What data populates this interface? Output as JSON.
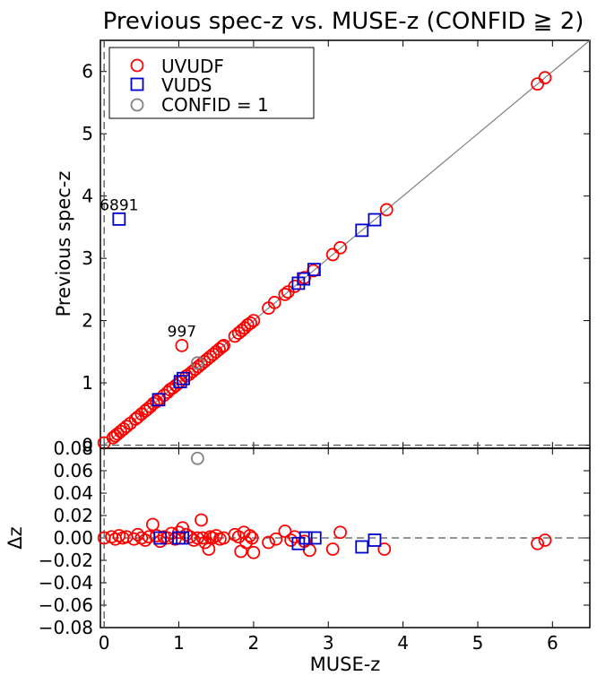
{
  "chart_data": [
    {
      "type": "scatter",
      "title": "Previous spec-z vs. MUSE-z (CONFID ≧ 2)",
      "xlabel": "",
      "ylabel": "Previous spec-z",
      "xlim": [
        -0.05,
        6.5
      ],
      "ylim": [
        -0.05,
        6.5
      ],
      "x_ticks": [
        0,
        1,
        2,
        3,
        4,
        5,
        6
      ],
      "y_ticks": [
        0,
        1,
        2,
        3,
        4,
        5,
        6
      ],
      "x_tick_labels": [],
      "y_tick_labels": [
        "0",
        "1",
        "2",
        "3",
        "4",
        "5",
        "6"
      ],
      "legend": {
        "position": "top-left",
        "entries": [
          "UVUDF",
          "VUDS",
          "CONFID = 1"
        ]
      },
      "colors": {
        "UVUDF": "#ff0000",
        "VUDS": "#0000cc",
        "CONFID = 1": "#808080",
        "one_to_one": "#808080"
      },
      "reference_lines": [
        "1:1 line",
        "x = 0 (dashed)",
        "y = 0 (dashed)"
      ],
      "annotations": [
        {
          "text": "6891",
          "x": 0.2,
          "y": 3.63
        },
        {
          "text": "997",
          "x": 1.04,
          "y": 1.6
        }
      ],
      "series": [
        {
          "name": "UVUDF",
          "marker": "circle",
          "points": [
            [
              0.0,
              0.0
            ],
            [
              0.12,
              0.12
            ],
            [
              0.15,
              0.15
            ],
            [
              0.18,
              0.18
            ],
            [
              0.22,
              0.22
            ],
            [
              0.26,
              0.26
            ],
            [
              0.3,
              0.3
            ],
            [
              0.35,
              0.35
            ],
            [
              0.42,
              0.42
            ],
            [
              0.45,
              0.45
            ],
            [
              0.5,
              0.5
            ],
            [
              0.55,
              0.55
            ],
            [
              0.58,
              0.58
            ],
            [
              0.62,
              0.62
            ],
            [
              0.66,
              0.67
            ],
            [
              0.7,
              0.7
            ],
            [
              0.74,
              0.74
            ],
            [
              0.8,
              0.8
            ],
            [
              0.85,
              0.85
            ],
            [
              0.88,
              0.89
            ],
            [
              0.92,
              0.92
            ],
            [
              0.96,
              0.96
            ],
            [
              1.0,
              1.0
            ],
            [
              1.04,
              1.6
            ],
            [
              1.1,
              1.11
            ],
            [
              1.14,
              1.14
            ],
            [
              1.18,
              1.18
            ],
            [
              1.22,
              1.22
            ],
            [
              1.26,
              1.26
            ],
            [
              1.3,
              1.3
            ],
            [
              1.34,
              1.34
            ],
            [
              1.38,
              1.38
            ],
            [
              1.42,
              1.42
            ],
            [
              1.46,
              1.46
            ],
            [
              1.5,
              1.5
            ],
            [
              1.54,
              1.54
            ],
            [
              1.58,
              1.58
            ],
            [
              1.6,
              1.6
            ],
            [
              1.75,
              1.75
            ],
            [
              1.8,
              1.8
            ],
            [
              1.84,
              1.84
            ],
            [
              1.88,
              1.88
            ],
            [
              1.92,
              1.93
            ],
            [
              1.96,
              1.96
            ],
            [
              2.0,
              2.0
            ],
            [
              2.2,
              2.2
            ],
            [
              2.28,
              2.29
            ],
            [
              2.42,
              2.42
            ],
            [
              2.46,
              2.46
            ],
            [
              2.55,
              2.55
            ],
            [
              2.68,
              2.69
            ],
            [
              2.8,
              2.8
            ],
            [
              3.06,
              3.06
            ],
            [
              3.16,
              3.17
            ],
            [
              3.78,
              3.78
            ],
            [
              5.8,
              5.8
            ],
            [
              5.9,
              5.9
            ]
          ]
        },
        {
          "name": "VUDS",
          "marker": "square",
          "points": [
            [
              0.2,
              3.63
            ],
            [
              0.73,
              0.73
            ],
            [
              1.02,
              1.02
            ],
            [
              1.06,
              1.07
            ],
            [
              2.6,
              2.6
            ],
            [
              2.67,
              2.67
            ],
            [
              2.81,
              2.82
            ],
            [
              3.45,
              3.45
            ],
            [
              3.62,
              3.62
            ]
          ]
        },
        {
          "name": "CONFID = 1",
          "marker": "circle",
          "points": [
            [
              1.25,
              1.32
            ]
          ]
        }
      ]
    },
    {
      "type": "scatter",
      "title": "",
      "xlabel": "MUSE-z",
      "ylabel": "Δz",
      "xlim": [
        -0.05,
        6.5
      ],
      "ylim": [
        -0.08,
        0.08
      ],
      "x_ticks": [
        0,
        1,
        2,
        3,
        4,
        5,
        6
      ],
      "y_ticks": [
        -0.08,
        -0.06,
        -0.04,
        -0.02,
        0.0,
        0.02,
        0.04,
        0.06,
        0.08
      ],
      "x_tick_labels": [
        "0",
        "1",
        "2",
        "3",
        "4",
        "5",
        "6"
      ],
      "y_tick_labels": [
        "−0.08",
        "−0.06",
        "−0.04",
        "−0.02",
        "0.00",
        "0.02",
        "0.04",
        "0.06",
        "0.08"
      ],
      "reference_lines": [
        "Δz = 0 (dashed)",
        "x = 0 (dashed)"
      ],
      "colors": {
        "UVUDF": "#ff0000",
        "VUDS": "#0000cc",
        "CONFID = 1": "#808080"
      },
      "series": [
        {
          "name": "UVUDF",
          "marker": "circle",
          "points": [
            [
              0.0,
              0.0
            ],
            [
              0.1,
              0.001
            ],
            [
              0.15,
              -0.001
            ],
            [
              0.2,
              0.002
            ],
            [
              0.25,
              0.0
            ],
            [
              0.3,
              0.001
            ],
            [
              0.4,
              -0.001
            ],
            [
              0.45,
              0.003
            ],
            [
              0.5,
              0.0
            ],
            [
              0.55,
              -0.002
            ],
            [
              0.6,
              0.001
            ],
            [
              0.65,
              0.012
            ],
            [
              0.7,
              0.002
            ],
            [
              0.75,
              -0.003
            ],
            [
              0.8,
              0.001
            ],
            [
              0.85,
              0.0
            ],
            [
              0.9,
              0.004
            ],
            [
              0.95,
              -0.001
            ],
            [
              1.0,
              0.005
            ],
            [
              1.05,
              0.009
            ],
            [
              1.1,
              0.003
            ],
            [
              1.15,
              0.001
            ],
            [
              1.2,
              -0.002
            ],
            [
              1.25,
              0.0
            ],
            [
              1.3,
              0.016
            ],
            [
              1.32,
              0.0
            ],
            [
              1.35,
              -0.004
            ],
            [
              1.4,
              -0.01
            ],
            [
              1.42,
              0.001
            ],
            [
              1.45,
              0.0
            ],
            [
              1.5,
              0.002
            ],
            [
              1.55,
              -0.001
            ],
            [
              1.6,
              0.0
            ],
            [
              1.75,
              0.003
            ],
            [
              1.8,
              0.001
            ],
            [
              1.83,
              -0.012
            ],
            [
              1.87,
              0.005
            ],
            [
              1.9,
              -0.004
            ],
            [
              1.95,
              0.002
            ],
            [
              1.98,
              0.0
            ],
            [
              2.0,
              -0.013
            ],
            [
              2.2,
              -0.004
            ],
            [
              2.3,
              -0.001
            ],
            [
              2.42,
              0.006
            ],
            [
              2.5,
              -0.002
            ],
            [
              2.55,
              0.001
            ],
            [
              2.68,
              -0.003
            ],
            [
              2.75,
              -0.011
            ],
            [
              3.06,
              -0.01
            ],
            [
              3.16,
              0.005
            ],
            [
              3.75,
              -0.01
            ],
            [
              5.8,
              -0.005
            ],
            [
              5.9,
              -0.002
            ]
          ]
        },
        {
          "name": "VUDS",
          "marker": "square",
          "points": [
            [
              0.75,
              0.0
            ],
            [
              1.0,
              0.0
            ],
            [
              1.05,
              0.0
            ],
            [
              2.6,
              -0.005
            ],
            [
              2.7,
              0.0
            ],
            [
              2.82,
              0.0
            ],
            [
              3.45,
              -0.008
            ],
            [
              3.62,
              -0.002
            ]
          ]
        },
        {
          "name": "CONFID = 1",
          "marker": "circle",
          "points": [
            [
              1.25,
              0.071
            ]
          ]
        }
      ]
    }
  ]
}
